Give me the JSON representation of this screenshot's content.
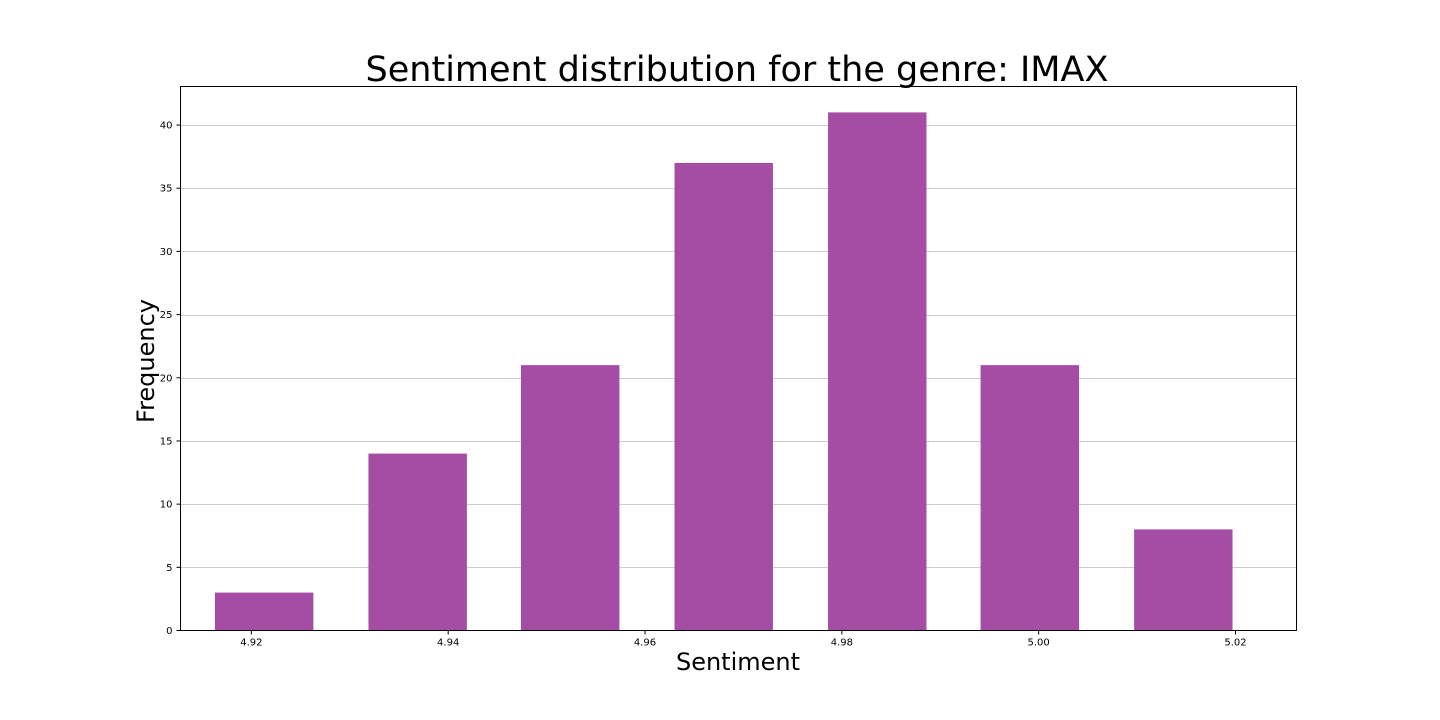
{
  "chart_data": {
    "type": "bar",
    "title": "Sentiment distribution for the genre: IMAX",
    "xlabel": "Sentiment",
    "ylabel": "Frequency",
    "bins": [
      {
        "center": 4.9213,
        "value": 3
      },
      {
        "center": 4.9369,
        "value": 14
      },
      {
        "center": 4.9524,
        "value": 21
      },
      {
        "center": 4.968,
        "value": 37
      },
      {
        "center": 4.9836,
        "value": 41
      },
      {
        "center": 4.9991,
        "value": 21
      },
      {
        "center": 5.0147,
        "value": 8
      }
    ],
    "bin_width": 0.01,
    "xlim": [
      4.9128,
      5.0262
    ],
    "ylim": [
      0,
      43.05
    ],
    "xticks": [
      {
        "value": 4.92,
        "label": "4.92"
      },
      {
        "value": 4.94,
        "label": "4.94"
      },
      {
        "value": 4.96,
        "label": "4.96"
      },
      {
        "value": 4.98,
        "label": "4.98"
      },
      {
        "value": 5.0,
        "label": "5.00"
      },
      {
        "value": 5.02,
        "label": "5.02"
      }
    ],
    "yticks": [
      {
        "value": 0,
        "label": "0"
      },
      {
        "value": 5,
        "label": "5"
      },
      {
        "value": 10,
        "label": "10"
      },
      {
        "value": 15,
        "label": "15"
      },
      {
        "value": 20,
        "label": "20"
      },
      {
        "value": 25,
        "label": "25"
      },
      {
        "value": 30,
        "label": "30"
      },
      {
        "value": 35,
        "label": "35"
      },
      {
        "value": 40,
        "label": "40"
      }
    ],
    "grid": "y",
    "bar_color": "#a54ca5",
    "grid_color": "#cccccc"
  }
}
